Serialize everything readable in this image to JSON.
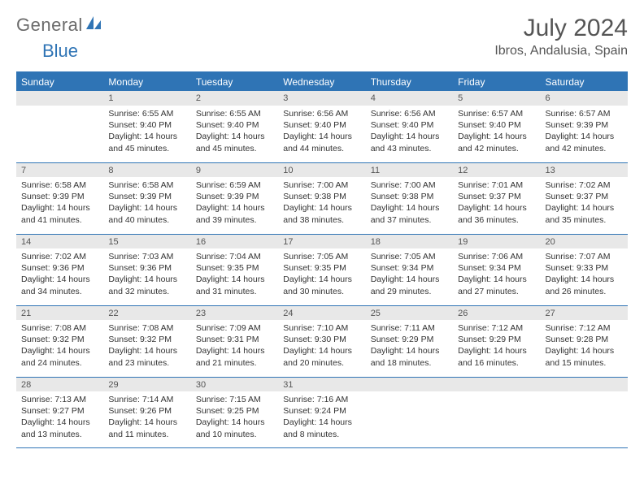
{
  "brand": {
    "part1": "General",
    "part2": "Blue"
  },
  "title": "July 2024",
  "location": "Ibros, Andalusia, Spain",
  "colors": {
    "accent": "#2f74b5",
    "headerRowBg": "#e8e8e8",
    "text": "#333333",
    "muted": "#555555",
    "background": "#ffffff"
  },
  "day_headers": [
    "Sunday",
    "Monday",
    "Tuesday",
    "Wednesday",
    "Thursday",
    "Friday",
    "Saturday"
  ],
  "labels": {
    "sunrise": "Sunrise:",
    "sunset": "Sunset:",
    "daylight": "Daylight:"
  },
  "weeks": [
    [
      null,
      {
        "n": "1",
        "sunrise": "6:55 AM",
        "sunset": "9:40 PM",
        "dl1": "14 hours",
        "dl2": "and 45 minutes."
      },
      {
        "n": "2",
        "sunrise": "6:55 AM",
        "sunset": "9:40 PM",
        "dl1": "14 hours",
        "dl2": "and 45 minutes."
      },
      {
        "n": "3",
        "sunrise": "6:56 AM",
        "sunset": "9:40 PM",
        "dl1": "14 hours",
        "dl2": "and 44 minutes."
      },
      {
        "n": "4",
        "sunrise": "6:56 AM",
        "sunset": "9:40 PM",
        "dl1": "14 hours",
        "dl2": "and 43 minutes."
      },
      {
        "n": "5",
        "sunrise": "6:57 AM",
        "sunset": "9:40 PM",
        "dl1": "14 hours",
        "dl2": "and 42 minutes."
      },
      {
        "n": "6",
        "sunrise": "6:57 AM",
        "sunset": "9:39 PM",
        "dl1": "14 hours",
        "dl2": "and 42 minutes."
      }
    ],
    [
      {
        "n": "7",
        "sunrise": "6:58 AM",
        "sunset": "9:39 PM",
        "dl1": "14 hours",
        "dl2": "and 41 minutes."
      },
      {
        "n": "8",
        "sunrise": "6:58 AM",
        "sunset": "9:39 PM",
        "dl1": "14 hours",
        "dl2": "and 40 minutes."
      },
      {
        "n": "9",
        "sunrise": "6:59 AM",
        "sunset": "9:39 PM",
        "dl1": "14 hours",
        "dl2": "and 39 minutes."
      },
      {
        "n": "10",
        "sunrise": "7:00 AM",
        "sunset": "9:38 PM",
        "dl1": "14 hours",
        "dl2": "and 38 minutes."
      },
      {
        "n": "11",
        "sunrise": "7:00 AM",
        "sunset": "9:38 PM",
        "dl1": "14 hours",
        "dl2": "and 37 minutes."
      },
      {
        "n": "12",
        "sunrise": "7:01 AM",
        "sunset": "9:37 PM",
        "dl1": "14 hours",
        "dl2": "and 36 minutes."
      },
      {
        "n": "13",
        "sunrise": "7:02 AM",
        "sunset": "9:37 PM",
        "dl1": "14 hours",
        "dl2": "and 35 minutes."
      }
    ],
    [
      {
        "n": "14",
        "sunrise": "7:02 AM",
        "sunset": "9:36 PM",
        "dl1": "14 hours",
        "dl2": "and 34 minutes."
      },
      {
        "n": "15",
        "sunrise": "7:03 AM",
        "sunset": "9:36 PM",
        "dl1": "14 hours",
        "dl2": "and 32 minutes."
      },
      {
        "n": "16",
        "sunrise": "7:04 AM",
        "sunset": "9:35 PM",
        "dl1": "14 hours",
        "dl2": "and 31 minutes."
      },
      {
        "n": "17",
        "sunrise": "7:05 AM",
        "sunset": "9:35 PM",
        "dl1": "14 hours",
        "dl2": "and 30 minutes."
      },
      {
        "n": "18",
        "sunrise": "7:05 AM",
        "sunset": "9:34 PM",
        "dl1": "14 hours",
        "dl2": "and 29 minutes."
      },
      {
        "n": "19",
        "sunrise": "7:06 AM",
        "sunset": "9:34 PM",
        "dl1": "14 hours",
        "dl2": "and 27 minutes."
      },
      {
        "n": "20",
        "sunrise": "7:07 AM",
        "sunset": "9:33 PM",
        "dl1": "14 hours",
        "dl2": "and 26 minutes."
      }
    ],
    [
      {
        "n": "21",
        "sunrise": "7:08 AM",
        "sunset": "9:32 PM",
        "dl1": "14 hours",
        "dl2": "and 24 minutes."
      },
      {
        "n": "22",
        "sunrise": "7:08 AM",
        "sunset": "9:32 PM",
        "dl1": "14 hours",
        "dl2": "and 23 minutes."
      },
      {
        "n": "23",
        "sunrise": "7:09 AM",
        "sunset": "9:31 PM",
        "dl1": "14 hours",
        "dl2": "and 21 minutes."
      },
      {
        "n": "24",
        "sunrise": "7:10 AM",
        "sunset": "9:30 PM",
        "dl1": "14 hours",
        "dl2": "and 20 minutes."
      },
      {
        "n": "25",
        "sunrise": "7:11 AM",
        "sunset": "9:29 PM",
        "dl1": "14 hours",
        "dl2": "and 18 minutes."
      },
      {
        "n": "26",
        "sunrise": "7:12 AM",
        "sunset": "9:29 PM",
        "dl1": "14 hours",
        "dl2": "and 16 minutes."
      },
      {
        "n": "27",
        "sunrise": "7:12 AM",
        "sunset": "9:28 PM",
        "dl1": "14 hours",
        "dl2": "and 15 minutes."
      }
    ],
    [
      {
        "n": "28",
        "sunrise": "7:13 AM",
        "sunset": "9:27 PM",
        "dl1": "14 hours",
        "dl2": "and 13 minutes."
      },
      {
        "n": "29",
        "sunrise": "7:14 AM",
        "sunset": "9:26 PM",
        "dl1": "14 hours",
        "dl2": "and 11 minutes."
      },
      {
        "n": "30",
        "sunrise": "7:15 AM",
        "sunset": "9:25 PM",
        "dl1": "14 hours",
        "dl2": "and 10 minutes."
      },
      {
        "n": "31",
        "sunrise": "7:16 AM",
        "sunset": "9:24 PM",
        "dl1": "14 hours",
        "dl2": "and 8 minutes."
      },
      null,
      null,
      null
    ]
  ]
}
